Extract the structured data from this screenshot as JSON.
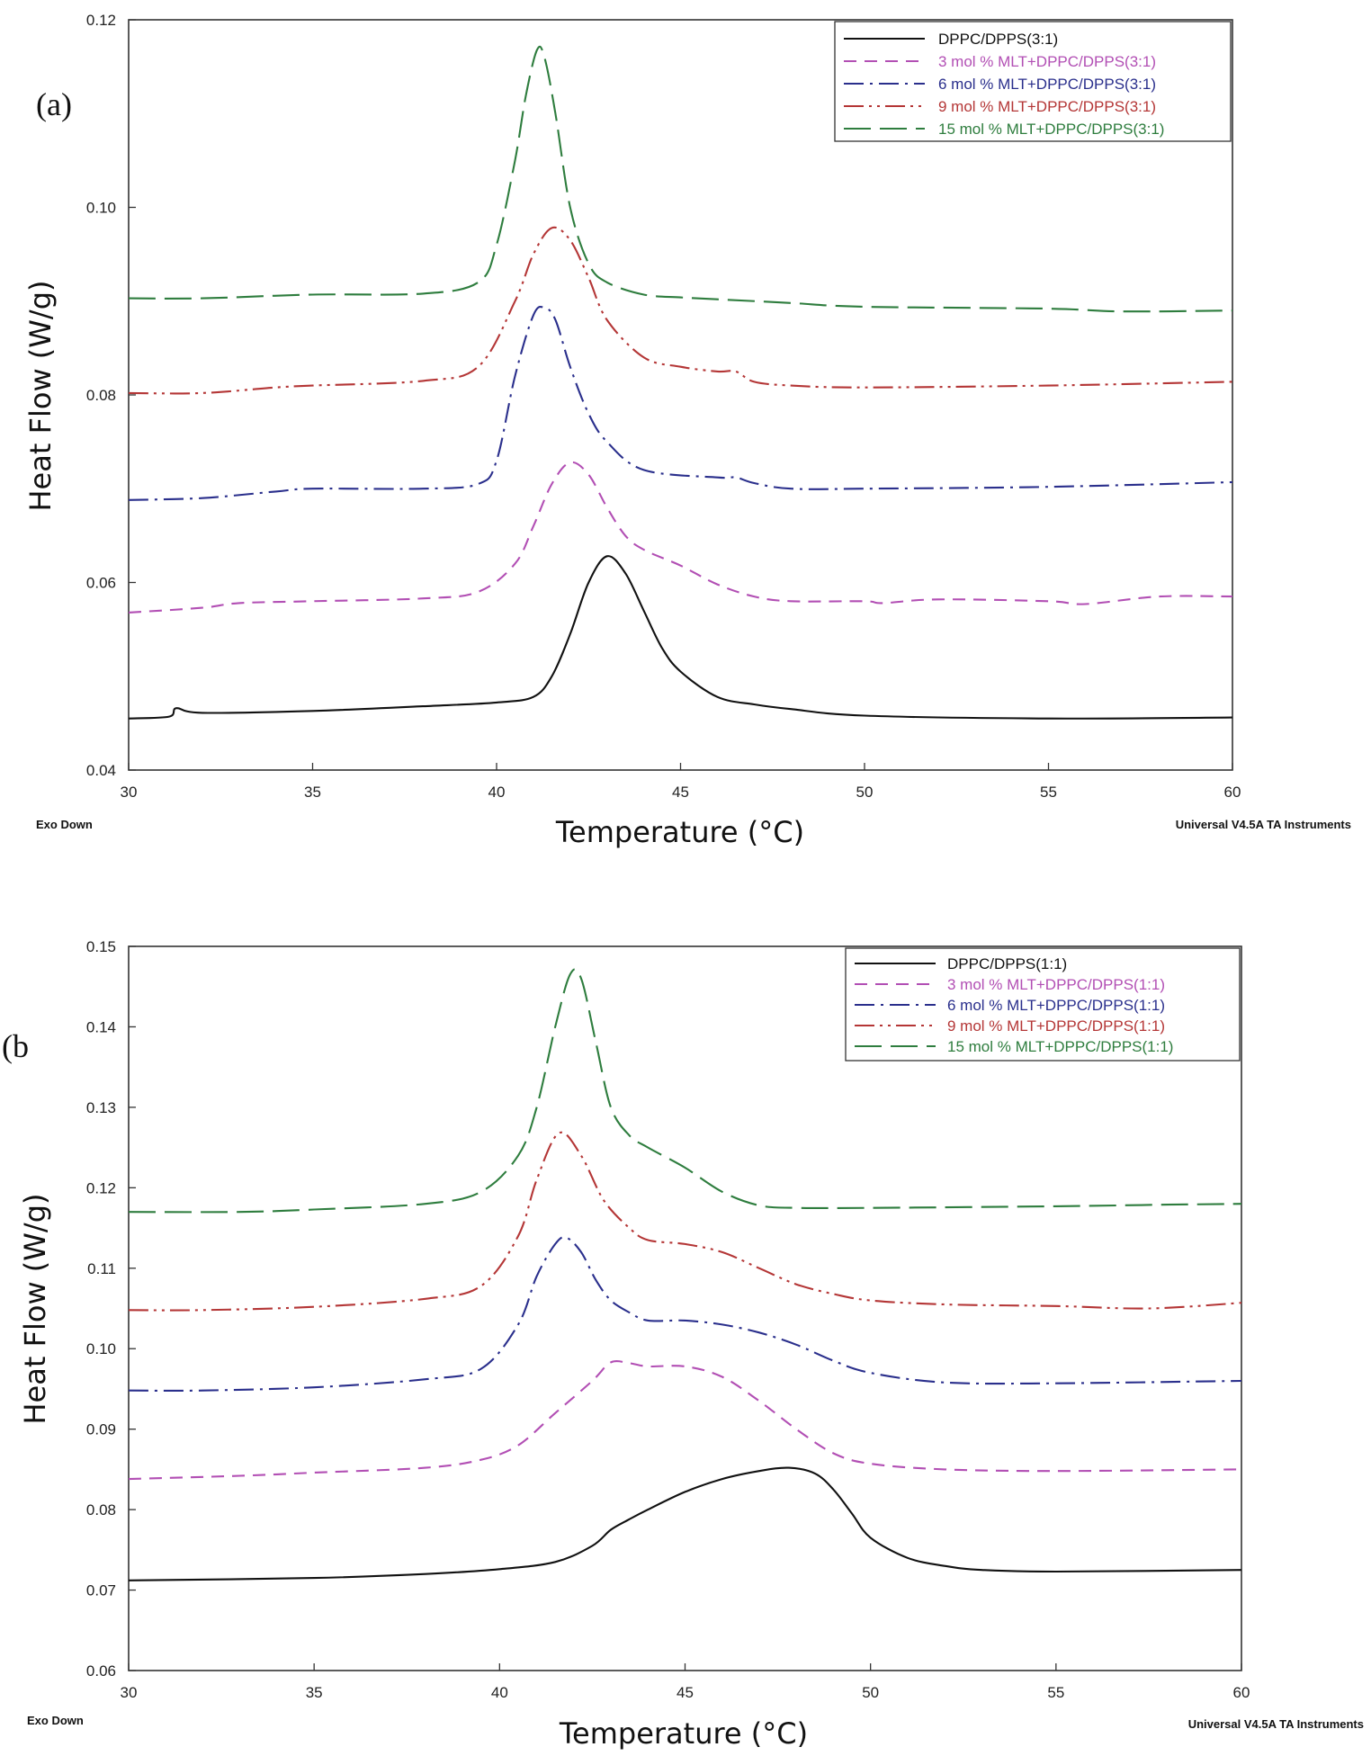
{
  "chart_data": [
    {
      "type": "line",
      "panel_label": "(a)",
      "xlabel": "Temperature (°C)",
      "ylabel": "Heat Flow (W/g)",
      "xlim": [
        30,
        60
      ],
      "ylim": [
        0.04,
        0.12
      ],
      "xticks": [
        "30",
        "35",
        "40",
        "45",
        "50",
        "55",
        "60"
      ],
      "yticks": [
        "0.04",
        "0.06",
        "0.08",
        "0.10",
        "0.12"
      ],
      "footer_left": "Exo Down",
      "footer_right": "Universal V4.5A TA Instruments",
      "legend_position": "top-right",
      "series": [
        {
          "name": "DPPC/DPPS(3:1)",
          "color": "#111111",
          "dash": "solid",
          "x": [
            30,
            31.1,
            31.3,
            32,
            35,
            38,
            40,
            41,
            41.5,
            42,
            42.5,
            43,
            43.5,
            44,
            44.5,
            45,
            46,
            47,
            48,
            50,
            55,
            60
          ],
          "y": [
            0.0455,
            0.0457,
            0.0466,
            0.0461,
            0.0463,
            0.0468,
            0.0472,
            0.0478,
            0.05,
            0.0545,
            0.06,
            0.0628,
            0.061,
            0.057,
            0.053,
            0.0505,
            0.0478,
            0.047,
            0.0465,
            0.0458,
            0.0455,
            0.0456
          ]
        },
        {
          "name": "3 mol % MLT+DPPC/DPPS(3:1)",
          "color": "#b24fb4",
          "dash": "dash",
          "x": [
            30,
            32,
            33,
            35,
            38,
            39.5,
            40.5,
            41,
            41.5,
            42,
            42.5,
            43,
            43.5,
            44,
            45,
            46,
            47,
            48,
            50,
            50.5,
            52,
            55,
            56,
            58,
            60
          ],
          "y": [
            0.0568,
            0.0573,
            0.0578,
            0.058,
            0.0583,
            0.059,
            0.062,
            0.066,
            0.0705,
            0.0728,
            0.0715,
            0.068,
            0.065,
            0.0635,
            0.0618,
            0.0598,
            0.0585,
            0.058,
            0.058,
            0.0578,
            0.0582,
            0.058,
            0.0577,
            0.0585,
            0.0585
          ]
        },
        {
          "name": "6 mol % MLT+DPPC/DPPS(3:1)",
          "color": "#2a2f8c",
          "dash": "dashdot",
          "x": [
            30,
            32,
            34,
            35,
            38,
            39.5,
            40,
            40.5,
            41,
            41.3,
            41.6,
            42,
            42.5,
            43,
            44,
            46,
            46.5,
            47,
            48,
            50,
            55,
            60
          ],
          "y": [
            0.0688,
            0.069,
            0.0697,
            0.07,
            0.07,
            0.0705,
            0.073,
            0.082,
            0.0885,
            0.0893,
            0.088,
            0.083,
            0.078,
            0.075,
            0.072,
            0.0712,
            0.0712,
            0.0706,
            0.07,
            0.07,
            0.0702,
            0.0707
          ]
        },
        {
          "name": "9 mol % MLT+DPPC/DPPS(3:1)",
          "color": "#b43636",
          "dash": "dashdotdot",
          "x": [
            30,
            32,
            34,
            35,
            38,
            39.5,
            40.5,
            41,
            41.5,
            42,
            42.5,
            43,
            44,
            45,
            46,
            46.5,
            47,
            48,
            50,
            55,
            60
          ],
          "y": [
            0.0802,
            0.0802,
            0.0808,
            0.081,
            0.0815,
            0.083,
            0.09,
            0.095,
            0.0978,
            0.0965,
            0.0925,
            0.088,
            0.084,
            0.083,
            0.0825,
            0.0825,
            0.0814,
            0.081,
            0.0808,
            0.081,
            0.0814
          ]
        },
        {
          "name": "15 mol % MLT+DPPC/DPPS(3:1)",
          "color": "#2e7d3e",
          "dash": "longdash",
          "x": [
            30,
            32,
            35,
            38,
            39.5,
            40,
            40.5,
            40.8,
            41.1,
            41.3,
            41.6,
            42,
            42.5,
            43,
            44,
            45,
            46,
            48,
            50,
            55,
            57,
            60
          ],
          "y": [
            0.0903,
            0.0903,
            0.0907,
            0.0908,
            0.092,
            0.096,
            0.105,
            0.112,
            0.1168,
            0.116,
            0.11,
            0.1,
            0.094,
            0.092,
            0.0907,
            0.0904,
            0.0902,
            0.0898,
            0.0894,
            0.0892,
            0.0889,
            0.089
          ]
        }
      ]
    },
    {
      "type": "line",
      "panel_label": "(b",
      "xlabel": "Temperature (°C)",
      "ylabel": "Heat Flow (W/g)",
      "xlim": [
        30,
        60
      ],
      "ylim": [
        0.06,
        0.15
      ],
      "xticks": [
        "30",
        "35",
        "40",
        "45",
        "50",
        "55",
        "60"
      ],
      "yticks": [
        "0.06",
        "0.07",
        "0.08",
        "0.09",
        "0.10",
        "0.11",
        "0.12",
        "0.13",
        "0.14",
        "0.15"
      ],
      "footer_left": "Exo Down",
      "footer_right": "Universal V4.5A TA Instruments",
      "legend_position": "top-right",
      "series": [
        {
          "name": "DPPC/DPPS(1:1)",
          "color": "#111111",
          "dash": "solid",
          "x": [
            30,
            35,
            38,
            40,
            41.5,
            42.5,
            43,
            43.5,
            44,
            45,
            46,
            47,
            47.8,
            48.5,
            49,
            49.5,
            50,
            51,
            52,
            53,
            55,
            60
          ],
          "y": [
            0.0712,
            0.0715,
            0.072,
            0.0726,
            0.0735,
            0.0755,
            0.0775,
            0.0788,
            0.08,
            0.0822,
            0.0838,
            0.0848,
            0.0852,
            0.0845,
            0.0825,
            0.0795,
            0.0765,
            0.074,
            0.073,
            0.0725,
            0.0723,
            0.0725
          ]
        },
        {
          "name": "3 mol % MLT+DPPC/DPPS(1:1)",
          "color": "#b24fb4",
          "dash": "dash",
          "x": [
            30,
            33,
            35,
            38,
            39.5,
            40.5,
            41.5,
            42.5,
            43,
            43.5,
            44,
            45,
            46,
            47,
            48,
            49,
            50,
            52,
            55,
            60
          ],
          "y": [
            0.0838,
            0.0842,
            0.0846,
            0.0852,
            0.0862,
            0.088,
            0.092,
            0.096,
            0.0983,
            0.0982,
            0.0978,
            0.0978,
            0.0965,
            0.0935,
            0.09,
            0.087,
            0.0857,
            0.085,
            0.0848,
            0.085
          ]
        },
        {
          "name": "6 mol % MLT+DPPC/DPPS(1:1)",
          "color": "#2a2f8c",
          "dash": "dashdot",
          "x": [
            30,
            32,
            35,
            38,
            39.5,
            40.5,
            41,
            41.5,
            41.8,
            42.2,
            42.6,
            43,
            43.5,
            44,
            45,
            46,
            47,
            48,
            49,
            50,
            52,
            55,
            60
          ],
          "y": [
            0.0948,
            0.0948,
            0.0952,
            0.0962,
            0.0975,
            0.103,
            0.109,
            0.113,
            0.1138,
            0.112,
            0.1085,
            0.106,
            0.1045,
            0.1035,
            0.1035,
            0.103,
            0.102,
            0.1005,
            0.0985,
            0.097,
            0.0958,
            0.0957,
            0.096
          ]
        },
        {
          "name": "9 mol % MLT+DPPC/DPPS(1:1)",
          "color": "#b43636",
          "dash": "dashdotdot",
          "x": [
            30,
            32,
            35,
            38,
            39.5,
            40.5,
            41,
            41.6,
            42.2,
            42.8,
            43.5,
            44,
            45,
            46,
            47,
            48,
            49,
            50,
            52,
            55,
            57.5,
            60
          ],
          "y": [
            0.1048,
            0.1048,
            0.1052,
            0.1062,
            0.1078,
            0.114,
            0.121,
            0.1268,
            0.124,
            0.1185,
            0.115,
            0.1135,
            0.113,
            0.112,
            0.11,
            0.108,
            0.1068,
            0.106,
            0.1055,
            0.1053,
            0.105,
            0.1057
          ]
        },
        {
          "name": "15 mol % MLT+DPPC/DPPS(1:1)",
          "color": "#2e7d3e",
          "dash": "longdash",
          "x": [
            30,
            33,
            35,
            38,
            39.5,
            40.5,
            41,
            41.5,
            41.9,
            42.2,
            42.6,
            43,
            43.5,
            44,
            45,
            46,
            47,
            48,
            50,
            55,
            58,
            60
          ],
          "y": [
            0.117,
            0.117,
            0.1173,
            0.118,
            0.1195,
            0.124,
            0.13,
            0.14,
            0.1465,
            0.146,
            0.138,
            0.13,
            0.1265,
            0.125,
            0.1225,
            0.1195,
            0.1178,
            0.1175,
            0.1175,
            0.1177,
            0.1179,
            0.118
          ]
        }
      ]
    }
  ]
}
